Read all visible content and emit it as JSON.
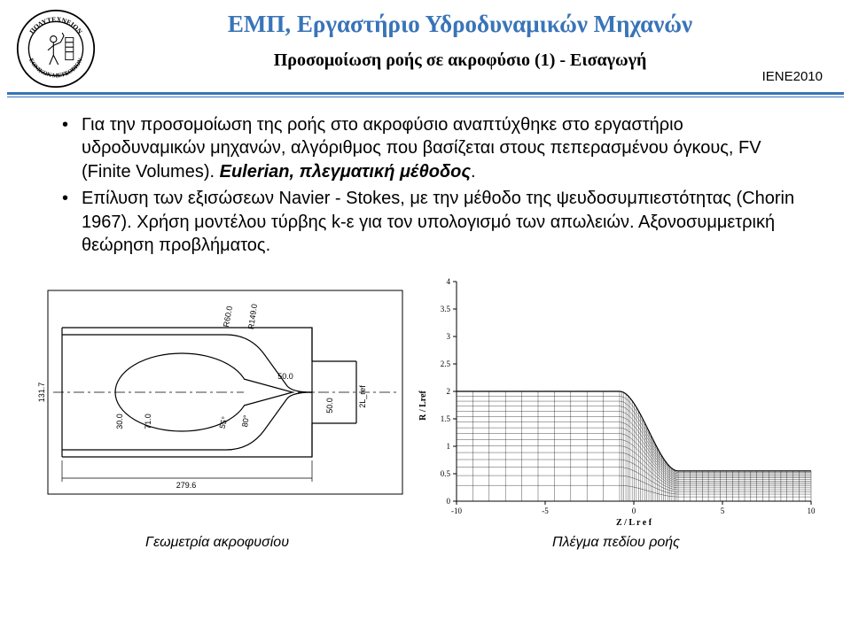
{
  "header": {
    "main_title": "ΕΜΠ, Εργαστήριο Υδροδυναμικών Μηχανών",
    "subtitle": "Προσομοίωση ροής σε ακροφύσιο (1) - Εισαγωγή",
    "tag": "IENE2010",
    "logo": {
      "ring_color": "#000000",
      "fill_color": "#ffffff",
      "text_top": "ΠΟΛΥΤΕΧΝΕΙΟΝ",
      "text_bottom": "ΕΘΝΙΚΟΝ  ΜΕΤΣΟΒΙΟΝ"
    },
    "rule_color": "#3974b8",
    "title_color": "#3974b8"
  },
  "bullets": [
    {
      "pre": "Για την προσομοίωση της ροής στο ακροφύσιο αναπτύχθηκε στο εργαστήριο υδροδυναμικών μηχανών, αλγόριθμος που βασίζεται στους πεπερασμένου όγκους, FV (Finite Volumes). ",
      "em": "Eulerian, πλεγματική μέθοδος",
      "post": "."
    },
    {
      "pre": "Επίλυση των εξισώσεων Navier - Stokes, με την μέθοδο της ψευδοσυμπιεστότητας (Chorin 1967). Χρήση μοντέλου τύρβης k-ε για τον υπολογισμό των απωλειών. Αξονοσυμμετρική θεώρηση προβλήματος.",
      "em": "",
      "post": ""
    }
  ],
  "fig_left": {
    "type": "engineering-drawing",
    "stroke": "#000000",
    "bg": "#ffffff",
    "dims": {
      "outer_height": "131.7",
      "total_width": "279.6",
      "d1": "30.0",
      "d2": "71.0",
      "ang1": "55°",
      "ang2": "80°",
      "seg": "50.0",
      "seg2": "50.0",
      "lref": "2L_ref",
      "r1": "R60.0",
      "r2": "R149.0"
    }
  },
  "fig_right": {
    "type": "scatter",
    "xlabel": "Z / L r e f",
    "ylabel": "R / Lref",
    "xlim": [
      -10,
      10
    ],
    "ylim": [
      0,
      4
    ],
    "xticks": [
      -10,
      -5,
      0,
      5,
      10
    ],
    "yticks": [
      0,
      0.5,
      1,
      1.5,
      2,
      2.5,
      3,
      3.5,
      4
    ],
    "axis_color": "#000000",
    "grid_color": "#000000",
    "label_fontsize": 9,
    "geometry": {
      "comment": "mesh outline: flat inlet, nozzle contraction, flat jet",
      "flat_r": 2.0,
      "jet_r": 0.55,
      "contraction_start_z": -0.8,
      "contraction_end_z": 2.5
    }
  },
  "captions": {
    "left": "Γεωμετρία ακροφυσίου",
    "right": "Πλέγμα πεδίου ροής"
  }
}
